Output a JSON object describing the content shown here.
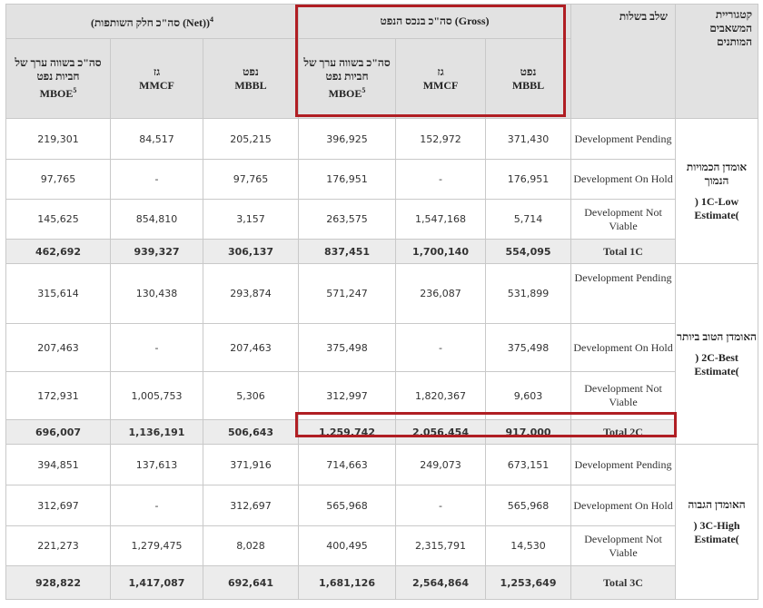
{
  "headers": {
    "category": "קטגוריית המשאבים המותנים",
    "stage": "שלב בשלות",
    "gross_group": "סה\"כ בנכס הנפט (Gross)",
    "net_group": "סה\"כ חלק השותפות (Net)",
    "net_group_sup": "4",
    "oil": "נפט",
    "oil_unit": "MBBL",
    "gas": "גז",
    "gas_unit": "MMCF",
    "boe": "סה\"כ בשווה ערך של חביות נפט",
    "boe_unit": "MBOE",
    "boe_sup": "5"
  },
  "categories": [
    {
      "heb": "אומדן הכמויות הנמוך",
      "eng": ") 1C-Low Estimate("
    },
    {
      "heb": "האומדן הטוב ביותר",
      "eng": ") 2C-Best Estimate("
    },
    {
      "heb": "האומדן הגבוה",
      "eng": ") 3C-High Estimate("
    }
  ],
  "rows": [
    {
      "stage": "Development Pending",
      "g_oil": "371,430",
      "g_gas": "152,972",
      "g_boe": "396,925",
      "n_oil": "205,215",
      "n_gas": "84,517",
      "n_boe": "219,301"
    },
    {
      "stage": "Development On Hold",
      "g_oil": "176,951",
      "g_gas": "-",
      "g_boe": "176,951",
      "n_oil": "97,765",
      "n_gas": "-",
      "n_boe": "97,765"
    },
    {
      "stage": "Development Not Viable",
      "g_oil": "5,714",
      "g_gas": "1,547,168",
      "g_boe": "263,575",
      "n_oil": "3,157",
      "n_gas": "854,810",
      "n_boe": "145,625"
    },
    {
      "stage": "Total 1C",
      "g_oil": "554,095",
      "g_gas": "1,700,140",
      "g_boe": "837,451",
      "n_oil": "306,137",
      "n_gas": "939,327",
      "n_boe": "462,692"
    },
    {
      "stage": "Development Pending",
      "g_oil": "531,899",
      "g_gas": "236,087",
      "g_boe": "571,247",
      "n_oil": "293,874",
      "n_gas": "130,438",
      "n_boe": "315,614"
    },
    {
      "stage": "Development On Hold",
      "g_oil": "375,498",
      "g_gas": "-",
      "g_boe": "375,498",
      "n_oil": "207,463",
      "n_gas": "-",
      "n_boe": "207,463"
    },
    {
      "stage": "Development Not Viable",
      "g_oil": "9,603",
      "g_gas": "1,820,367",
      "g_boe": "312,997",
      "n_oil": "5,306",
      "n_gas": "1,005,753",
      "n_boe": "172,931"
    },
    {
      "stage": "Total 2C",
      "g_oil": "917,000",
      "g_gas": "2,056,454",
      "g_boe": "1,259,742",
      "n_oil": "506,643",
      "n_gas": "1,136,191",
      "n_boe": "696,007"
    },
    {
      "stage": "Development Pending",
      "g_oil": "673,151",
      "g_gas": "249,073",
      "g_boe": "714,663",
      "n_oil": "371,916",
      "n_gas": "137,613",
      "n_boe": "394,851"
    },
    {
      "stage": "Development On Hold",
      "g_oil": "565,968",
      "g_gas": "-",
      "g_boe": "565,968",
      "n_oil": "312,697",
      "n_gas": "-",
      "n_boe": "312,697"
    },
    {
      "stage": "Development Not Viable",
      "g_oil": "14,530",
      "g_gas": "2,315,791",
      "g_boe": "400,495",
      "n_oil": "8,028",
      "n_gas": "1,279,475",
      "n_boe": "221,273"
    },
    {
      "stage": "Total 3C",
      "g_oil": "1,253,649",
      "g_gas": "2,564,864",
      "g_boe": "1,681,126",
      "n_oil": "692,641",
      "n_gas": "1,417,087",
      "n_boe": "928,822"
    }
  ],
  "colors": {
    "highlight": "#b01e23",
    "header_bg": "#e2e2e2",
    "total_bg": "#ececec",
    "border": "#c9c9c9"
  }
}
